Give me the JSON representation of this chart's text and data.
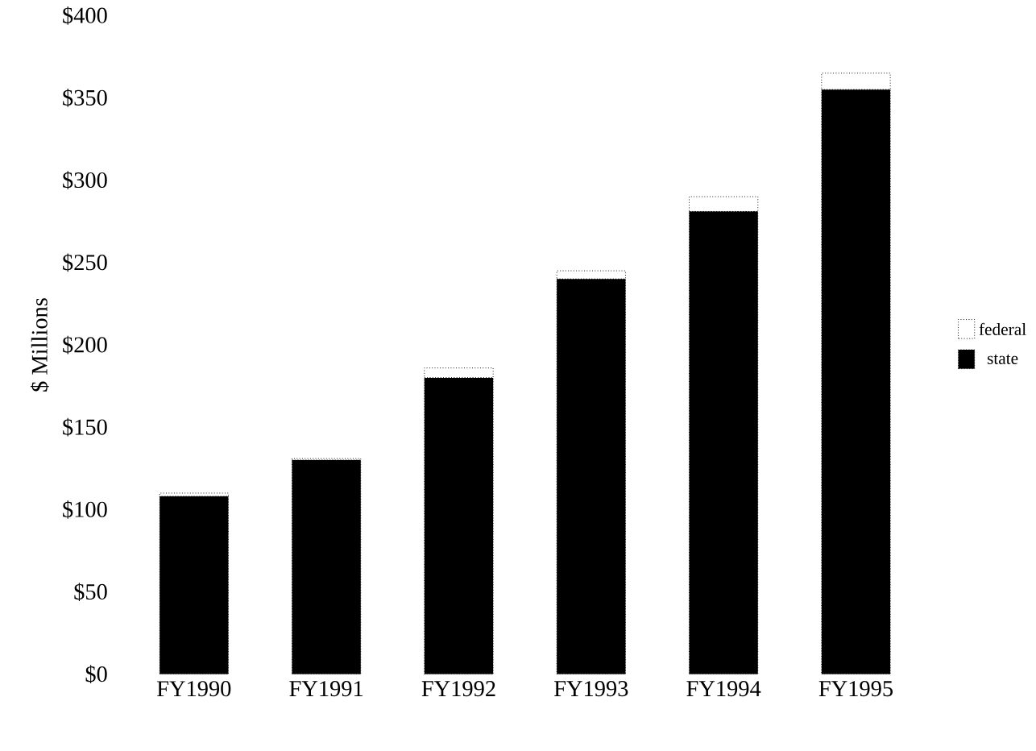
{
  "chart_data": {
    "type": "bar",
    "stacked": true,
    "ylabel": "$ Millions",
    "categories": [
      "FY1990",
      "FY1991",
      "FY1992",
      "FY1993",
      "FY1994",
      "FY1995"
    ],
    "series": [
      {
        "name": "state",
        "color": "#000000",
        "values": [
          108,
          130,
          180,
          240,
          281,
          355
        ]
      },
      {
        "name": "federal",
        "color": "#ffffff",
        "values": [
          2,
          1,
          6,
          5,
          9,
          10
        ]
      }
    ],
    "ylim": [
      0,
      400
    ],
    "yticks": [
      {
        "value": 0,
        "label": "$0"
      },
      {
        "value": 50,
        "label": "$50"
      },
      {
        "value": 100,
        "label": "$100"
      },
      {
        "value": 150,
        "label": "$150"
      },
      {
        "value": 200,
        "label": "$200"
      },
      {
        "value": 250,
        "label": "$250"
      },
      {
        "value": 300,
        "label": "$300"
      },
      {
        "value": 350,
        "label": "$350"
      },
      {
        "value": 400,
        "label": "$400"
      }
    ],
    "grid": false,
    "legend": "right"
  }
}
